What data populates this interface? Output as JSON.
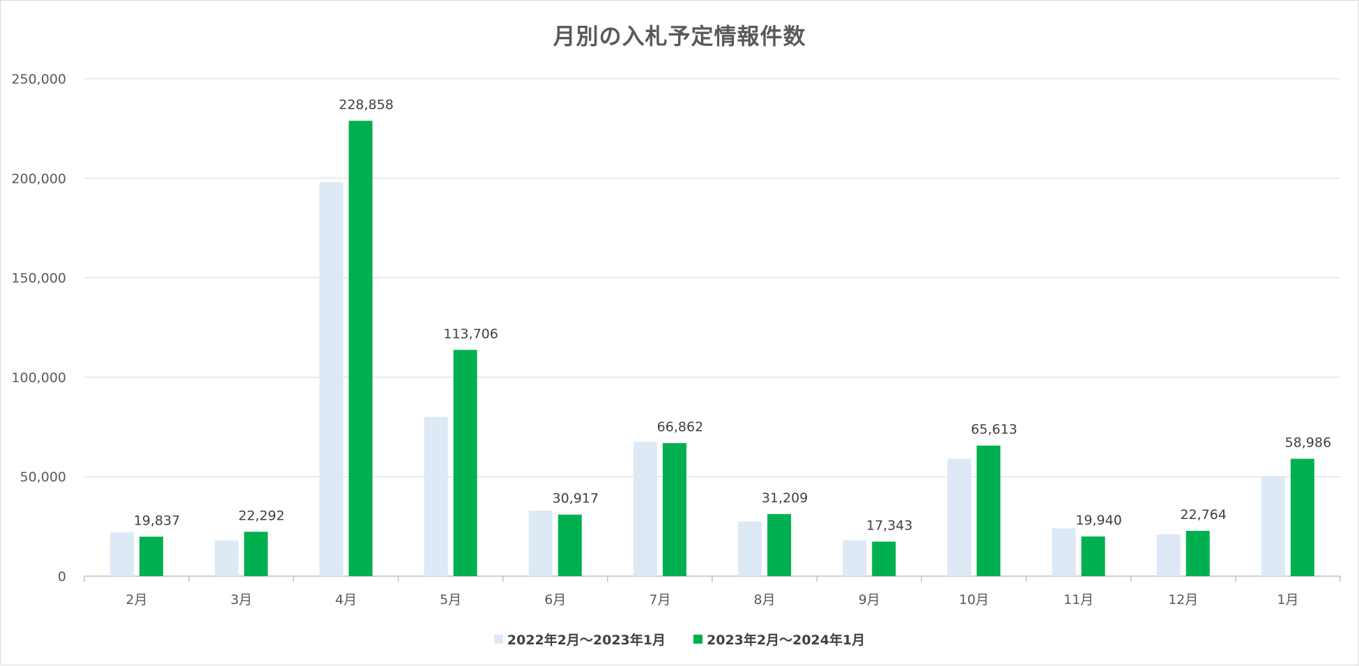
{
  "chart_data": {
    "type": "bar",
    "title": "月別の入札予定情報件数",
    "xlabel": "",
    "ylabel": "",
    "ylim": [
      0,
      250000
    ],
    "yticks": [
      0,
      50000,
      100000,
      150000,
      200000,
      250000
    ],
    "ytick_labels": [
      "0",
      "50,000",
      "100,000",
      "150,000",
      "200,000",
      "250,000"
    ],
    "grid": true,
    "legend_position": "bottom",
    "categories": [
      "2月",
      "3月",
      "4月",
      "5月",
      "6月",
      "7月",
      "8月",
      "9月",
      "10月",
      "11月",
      "12月",
      "1月"
    ],
    "series": [
      {
        "name": "2022年2月～2023年1月",
        "color": "#dde9f5",
        "values": [
          22000,
          18000,
          198000,
          80000,
          33000,
          67500,
          27500,
          18000,
          59000,
          24000,
          21000,
          50000
        ],
        "show_labels": false
      },
      {
        "name": "2023年2月～2024年1月",
        "color": "#00b050",
        "values": [
          19837,
          22292,
          228858,
          113706,
          30917,
          66862,
          31209,
          17343,
          65613,
          19940,
          22764,
          58986
        ],
        "labels": [
          "19,837",
          "22,292",
          "228,858",
          "113,706",
          "30,917",
          "66,862",
          "31,209",
          "17,343",
          "65,613",
          "19,940",
          "22,764",
          "58,986"
        ],
        "show_labels": true
      }
    ]
  }
}
